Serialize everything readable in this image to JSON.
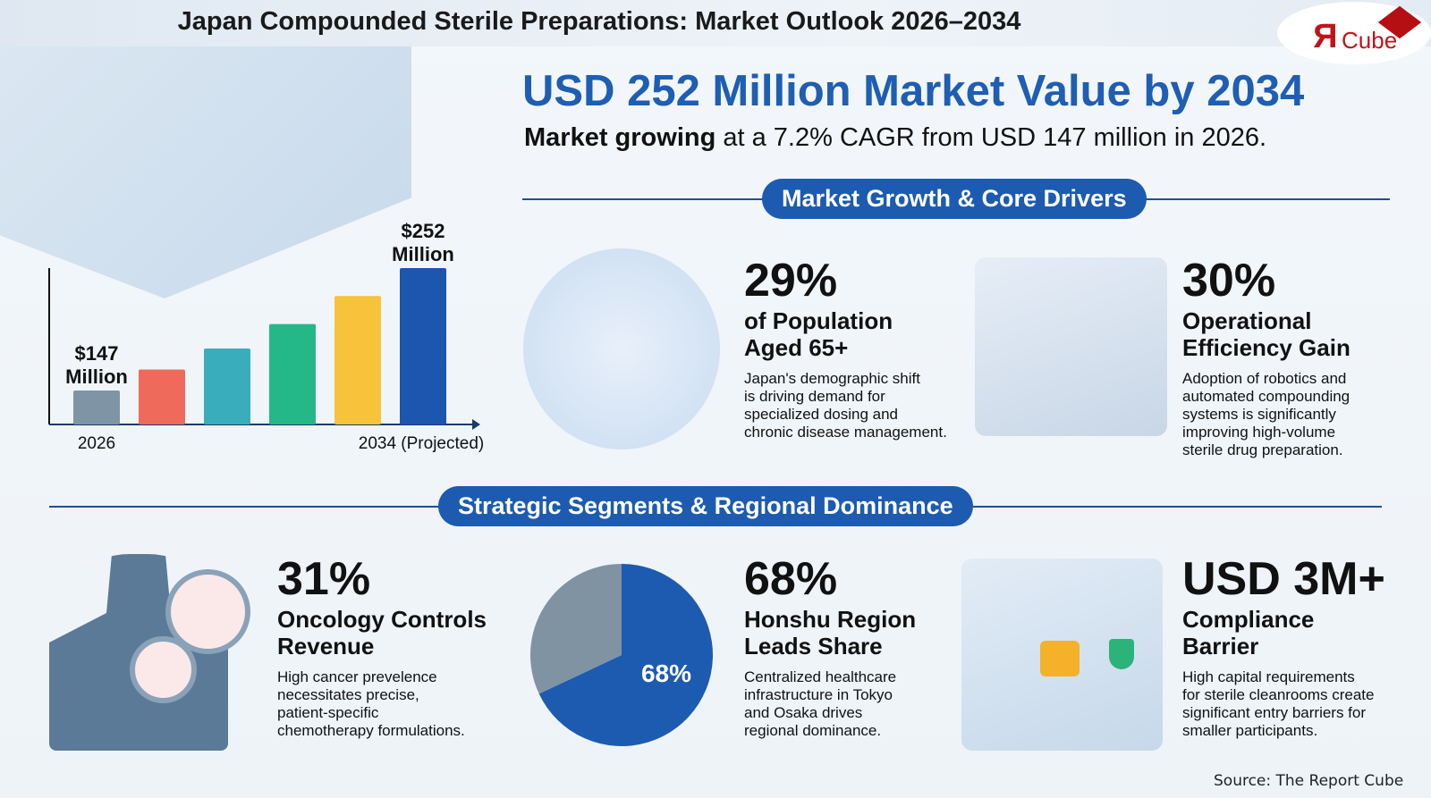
{
  "title": "Japan Compounded Sterile Preparations: Market Outlook 2026–2034",
  "logo": {
    "text": "ЯCube"
  },
  "headline": "USD 252 Million Market Value by 2034",
  "subheadline": {
    "bold": "Market growing",
    "rest": " at a 7.2% CAGR from USD 147 million in 2026."
  },
  "section1": "Market Growth & Core Drivers",
  "section2": "Strategic Segments & Regional Dominance",
  "cards": [
    {
      "stat": "29%",
      "heading1": "of Population",
      "heading2": "Aged 65+",
      "body": [
        "Japan's demographic shift",
        "is driving demand for",
        "specialized dosing and",
        "chronic disease management."
      ]
    },
    {
      "stat": "30%",
      "heading1": "Operational",
      "heading2": "Efficiency Gain",
      "body": [
        "Adoption of robotics and",
        "automated compounding",
        "systems is significantly",
        "improving high-volume",
        "sterile drug preparation."
      ]
    },
    {
      "stat": "31%",
      "heading1": "Oncology Controls",
      "heading2": "Revenue",
      "body": [
        "High cancer prevelence",
        "necessitates precise,",
        "patient-specific",
        "chemotherapy formulations."
      ]
    },
    {
      "stat": "68%",
      "heading1": "Honshu Region",
      "heading2": "Leads Share",
      "body": [
        "Centralized healthcare",
        "infrastructure in Tokyo",
        "and Osaka drives",
        "regional dominance."
      ]
    },
    {
      "stat": "USD 3M+",
      "heading1": "Compliance",
      "heading2": "Barrier",
      "body": [
        "High capital requirements",
        "for sterile cleanrooms create",
        "significant entry barriers for",
        "smaller participants."
      ]
    }
  ],
  "source": "Source: The Report Cube",
  "chart_data": [
    {
      "type": "bar",
      "categories": [
        "2026",
        "",
        "",
        "",
        "",
        "2034 (Projected)"
      ],
      "values": [
        147,
        165,
        183,
        204,
        228,
        252
      ],
      "unit": "USD Million",
      "data_labels": [
        {
          "index": 0,
          "line1": "$147",
          "line2": "Million"
        },
        {
          "index": 5,
          "line1": "$252",
          "line2": "Million"
        }
      ],
      "colors": [
        "#7f95a6",
        "#ef6a5a",
        "#3aadbc",
        "#24b888",
        "#f6c33b",
        "#1c56ae"
      ],
      "grid": false
    },
    {
      "type": "pie",
      "slices": [
        {
          "label": "68%",
          "value": 68,
          "color": "#1c5bb0"
        },
        {
          "label": "",
          "value": 32,
          "color": "#7f93a3"
        }
      ]
    }
  ]
}
